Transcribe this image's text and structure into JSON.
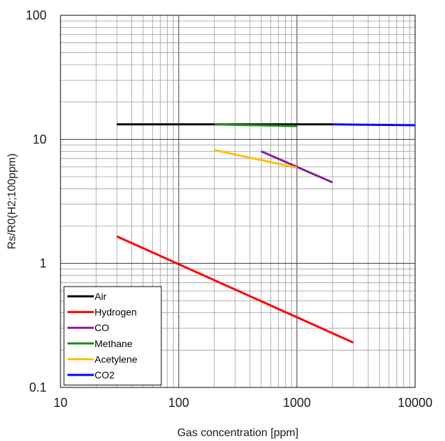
{
  "chart_data": {
    "type": "line",
    "xlabel": "Gas concentration [ppm]",
    "ylabel": "Rs/R0(H2;100ppm)",
    "x_scale": "log",
    "y_scale": "log",
    "xlim": [
      10,
      10000
    ],
    "ylim": [
      0.1,
      100
    ],
    "grid": true,
    "legend_position": "bottom-left",
    "x_tick_labels": [
      "10",
      "100",
      "1000",
      "10000"
    ],
    "y_tick_labels": [
      "0.1",
      "1",
      "10",
      "100"
    ],
    "series": [
      {
        "name": "Air",
        "color": "#000000",
        "x": [
          30,
          2000
        ],
        "y": [
          13.2,
          13.2
        ]
      },
      {
        "name": "Hydrogen",
        "color": "#ff0000",
        "x": [
          30,
          3000
        ],
        "y": [
          1.65,
          0.23
        ]
      },
      {
        "name": "CO",
        "color": "#8b1a9b",
        "x": [
          500,
          2000
        ],
        "y": [
          8.0,
          4.5
        ]
      },
      {
        "name": "Methane",
        "color": "#1a8a1a",
        "x": [
          200,
          1000
        ],
        "y": [
          13.2,
          12.8
        ]
      },
      {
        "name": "Acetylene",
        "color": "#ffc000",
        "x": [
          200,
          1000
        ],
        "y": [
          8.2,
          5.9
        ]
      },
      {
        "name": "CO2",
        "color": "#0000ff",
        "x": [
          2000,
          10000
        ],
        "y": [
          13.2,
          13.0
        ]
      }
    ]
  }
}
